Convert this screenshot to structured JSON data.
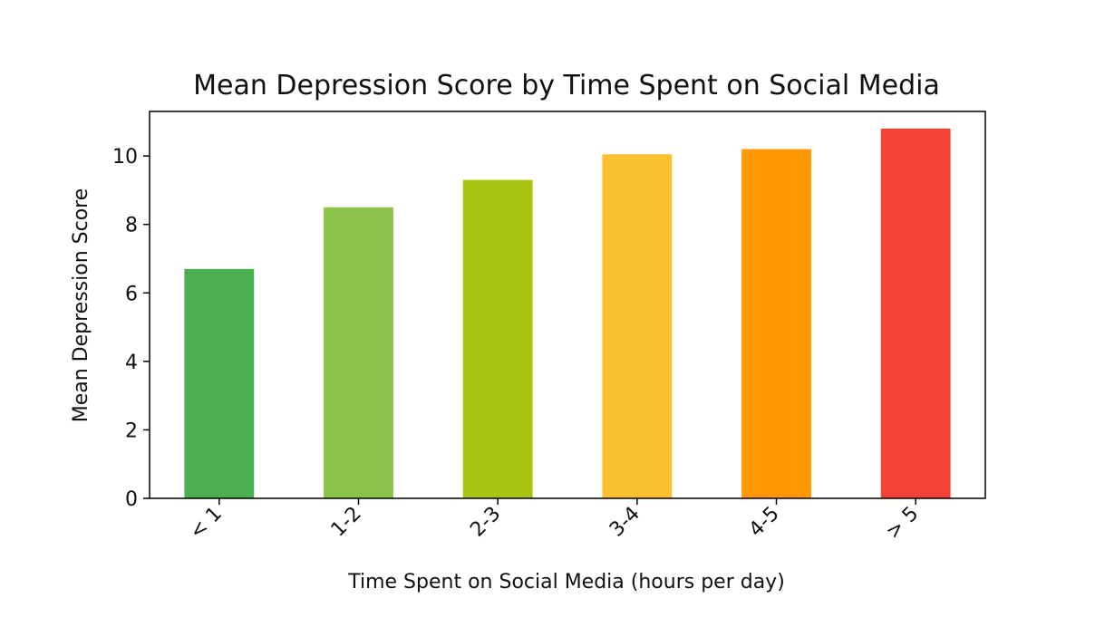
{
  "chart_data": {
    "type": "bar",
    "title": "Mean Depression Score by Time Spent on Social Media",
    "xlabel": "Time Spent on Social Media (hours per day)",
    "ylabel": "Mean Depression Score",
    "categories": [
      "< 1",
      "1-2",
      "2-3",
      "3-4",
      "4-5",
      "> 5"
    ],
    "values": [
      6.7,
      8.5,
      9.3,
      10.05,
      10.2,
      10.8
    ],
    "colors": [
      "#4CAF50",
      "#8BC34A",
      "#A8C410",
      "#FBC02D",
      "#FF9800",
      "#F44336"
    ],
    "ylim": [
      0,
      11.3
    ],
    "yticks": [
      0,
      2,
      4,
      6,
      8,
      10
    ],
    "grid": false,
    "legend": false
  }
}
